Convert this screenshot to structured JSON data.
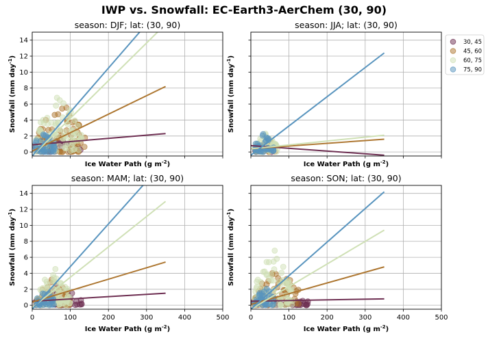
{
  "title": "IWP vs. Snowfall: EC-Earth3-AerChem  (30, 90)",
  "legend": {
    "placement": "outside-top-right",
    "entries": [
      {
        "label": "30, 45",
        "color": "#6e2f52"
      },
      {
        "label": "45, 60",
        "color": "#ad7630"
      },
      {
        "label": "60, 75",
        "color": "#cfe0b5"
      },
      {
        "label": "75, 90",
        "color": "#5894be"
      }
    ]
  },
  "chart_data": [
    {
      "type": "scatter",
      "title": "season: DJF; lat: (30, 90)",
      "xlabel": "Ice Water Path (g m$^{-2}$)",
      "ylabel": "Snowfall (mm day$^{-1}$)",
      "xlim": [
        0,
        500
      ],
      "ylim": [
        -0.5,
        15
      ],
      "xticks": [
        0,
        100,
        200,
        300,
        400,
        500
      ],
      "yticks": [
        0,
        2,
        4,
        6,
        8,
        10,
        12,
        14
      ],
      "grid": true,
      "show_xticklabels": false,
      "show_yticklabels": true,
      "series": [
        {
          "name": "30, 45",
          "fit_line": [
            [
              0,
              0.9
            ],
            [
              350,
              2.3
            ]
          ],
          "clusters": [
            {
              "x": [
                2,
                130
              ],
              "y": [
                0,
                1.8
              ],
              "n": 45
            }
          ]
        },
        {
          "name": "45, 60",
          "fit_line": [
            [
              0,
              0.1
            ],
            [
              350,
              8.2
            ]
          ],
          "clusters": [
            {
              "x": [
                10,
                140
              ],
              "y": [
                0,
                6.8
              ],
              "n": 70
            }
          ]
        },
        {
          "name": "60, 75",
          "fit_line": [
            [
              0,
              -0.5
            ],
            [
              350,
              16
            ]
          ],
          "clusters": [
            {
              "x": [
                10,
                130
              ],
              "y": [
                0,
                7.8
              ],
              "n": 90
            }
          ]
        },
        {
          "name": "75, 90",
          "fit_line": [
            [
              0,
              -0.5
            ],
            [
              300,
              16
            ]
          ],
          "clusters": [
            {
              "x": [
                5,
                60
              ],
              "y": [
                0,
                3
              ],
              "n": 40
            }
          ]
        }
      ]
    },
    {
      "type": "scatter",
      "title": "season: JJA; lat: (30, 90)",
      "xlabel": "Ice Water Path (g m$^{-2}$)",
      "ylabel": "Snowfall (mm day$^{-1}$)",
      "xlim": [
        0,
        500
      ],
      "ylim": [
        -0.5,
        15
      ],
      "xticks": [
        0,
        100,
        200,
        300,
        400,
        500
      ],
      "yticks": [
        0,
        2,
        4,
        6,
        8,
        10,
        12,
        14
      ],
      "grid": true,
      "show_xticklabels": false,
      "show_yticklabels": false,
      "series": [
        {
          "name": "30, 45",
          "fit_line": [
            [
              0,
              0.8
            ],
            [
              350,
              -0.4
            ]
          ],
          "clusters": [
            {
              "x": [
                10,
                60
              ],
              "y": [
                0,
                1.2
              ],
              "n": 25
            }
          ]
        },
        {
          "name": "45, 60",
          "fit_line": [
            [
              0,
              0.4
            ],
            [
              350,
              1.6
            ]
          ],
          "clusters": [
            {
              "x": [
                10,
                70
              ],
              "y": [
                0,
                1.8
              ],
              "n": 35
            }
          ]
        },
        {
          "name": "60, 75",
          "fit_line": [
            [
              0,
              0.4
            ],
            [
              350,
              2.1
            ]
          ],
          "clusters": [
            {
              "x": [
                10,
                70
              ],
              "y": [
                0,
                2.6
              ],
              "n": 45
            }
          ]
        },
        {
          "name": "75, 90",
          "fit_line": [
            [
              0,
              -0.4
            ],
            [
              350,
              12.4
            ]
          ],
          "clusters": [
            {
              "x": [
                10,
                60
              ],
              "y": [
                0,
                2.5
              ],
              "n": 40
            }
          ]
        }
      ]
    },
    {
      "type": "scatter",
      "title": "season: MAM; lat: (30, 90)",
      "xlabel": "Ice Water Path (g m$^{-2}$)",
      "ylabel": "Snowfall (mm day$^{-1}$)",
      "xlim": [
        0,
        500
      ],
      "ylim": [
        -0.5,
        15
      ],
      "xticks": [
        0,
        100,
        200,
        300,
        400,
        500
      ],
      "yticks": [
        0,
        2,
        4,
        6,
        8,
        10,
        12,
        14
      ],
      "grid": true,
      "show_xticklabels": true,
      "show_yticklabels": true,
      "series": [
        {
          "name": "30, 45",
          "fit_line": [
            [
              0,
              0.5
            ],
            [
              350,
              1.5
            ]
          ],
          "clusters": [
            {
              "x": [
                5,
                130
              ],
              "y": [
                0,
                2.5
              ],
              "n": 45
            }
          ]
        },
        {
          "name": "45, 60",
          "fit_line": [
            [
              0,
              0.4
            ],
            [
              350,
              5.4
            ]
          ],
          "clusters": [
            {
              "x": [
                10,
                100
              ],
              "y": [
                0,
                3.5
              ],
              "n": 55
            }
          ]
        },
        {
          "name": "60, 75",
          "fit_line": [
            [
              0,
              -0.3
            ],
            [
              350,
              13
            ]
          ],
          "clusters": [
            {
              "x": [
                10,
                100
              ],
              "y": [
                0,
                5
              ],
              "n": 80
            }
          ]
        },
        {
          "name": "75, 90",
          "fit_line": [
            [
              0,
              -0.5
            ],
            [
              300,
              15.5
            ]
          ],
          "clusters": [
            {
              "x": [
                10,
                60
              ],
              "y": [
                0,
                2
              ],
              "n": 40
            }
          ]
        }
      ]
    },
    {
      "type": "scatter",
      "title": "season: SON; lat: (30, 90)",
      "xlabel": "Ice Water Path (g m$^{-2}$)",
      "ylabel": "Snowfall (mm day$^{-1}$)",
      "xlim": [
        0,
        500
      ],
      "ylim": [
        -0.5,
        15
      ],
      "xticks": [
        0,
        100,
        200,
        300,
        400,
        500
      ],
      "yticks": [
        0,
        2,
        4,
        6,
        8,
        10,
        12,
        14
      ],
      "grid": true,
      "show_xticklabels": true,
      "show_yticklabels": false,
      "series": [
        {
          "name": "30, 45",
          "fit_line": [
            [
              0,
              0.5
            ],
            [
              350,
              0.8
            ]
          ],
          "clusters": [
            {
              "x": [
                5,
                150
              ],
              "y": [
                0,
                1.5
              ],
              "n": 45
            }
          ]
        },
        {
          "name": "45, 60",
          "fit_line": [
            [
              0,
              0.1
            ],
            [
              350,
              4.8
            ]
          ],
          "clusters": [
            {
              "x": [
                10,
                130
              ],
              "y": [
                0,
                5
              ],
              "n": 60
            }
          ]
        },
        {
          "name": "60, 75",
          "fit_line": [
            [
              0,
              -0.5
            ],
            [
              350,
              9.4
            ]
          ],
          "clusters": [
            {
              "x": [
                10,
                110
              ],
              "y": [
                0,
                7.2
              ],
              "n": 85
            }
          ]
        },
        {
          "name": "75, 90",
          "fit_line": [
            [
              0,
              -0.5
            ],
            [
              350,
              14.2
            ]
          ],
          "clusters": [
            {
              "x": [
                10,
                60
              ],
              "y": [
                0,
                2.8
              ],
              "n": 40
            }
          ]
        }
      ]
    }
  ]
}
